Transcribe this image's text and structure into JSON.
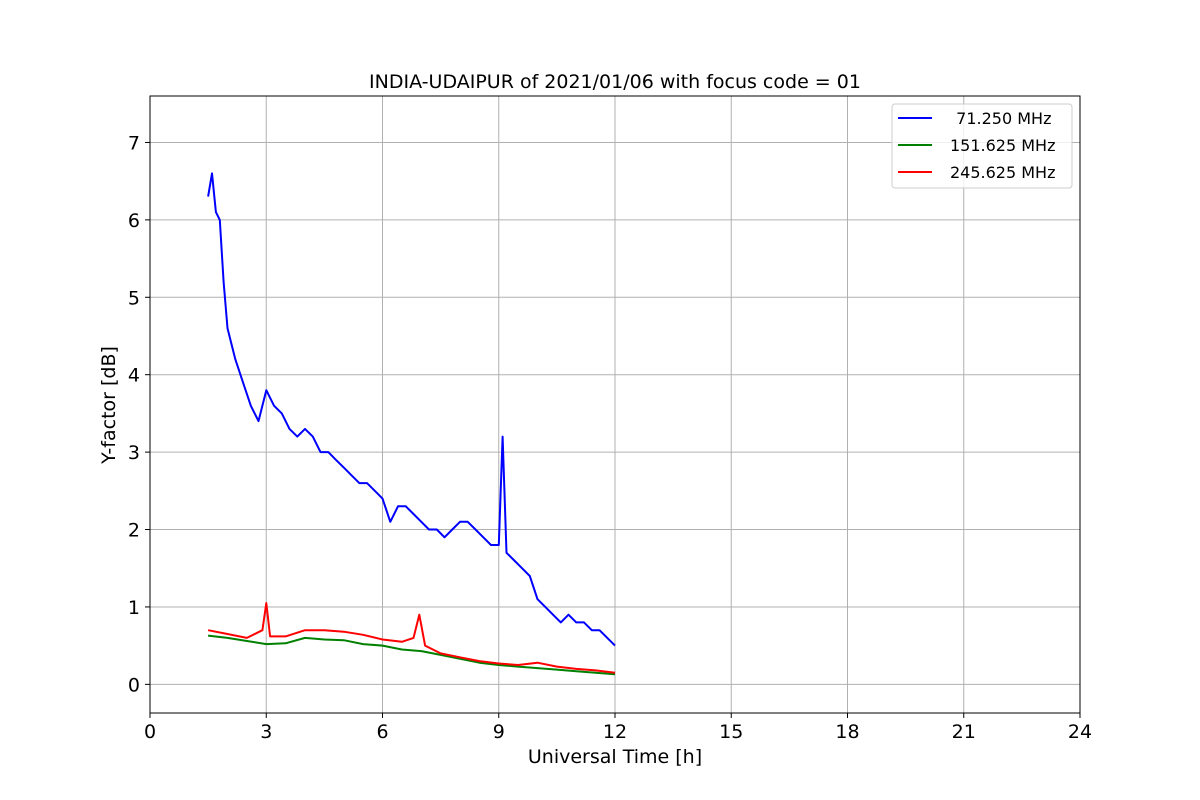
{
  "chart_data": {
    "type": "line",
    "title": "INDIA-UDAIPUR of 2021/01/06 with focus code = 01",
    "xlabel": "Universal Time [h]",
    "ylabel": "Y-factor [dB]",
    "xlim": [
      0,
      24
    ],
    "ylim": [
      -0.37,
      7.6
    ],
    "xticks": [
      0,
      3,
      6,
      9,
      12,
      15,
      18,
      21,
      24
    ],
    "xtick_labels": [
      "0",
      "3",
      "6",
      "9",
      "12",
      "15",
      "18",
      "21",
      "24"
    ],
    "yticks": [
      0,
      1,
      2,
      3,
      4,
      5,
      6,
      7
    ],
    "ytick_labels": [
      "0",
      "1",
      "2",
      "3",
      "4",
      "5",
      "6",
      "7"
    ],
    "grid": true,
    "legend_position": "top-right",
    "series": [
      {
        "name": "  71.250 MHz",
        "color": "#0000ff",
        "x": [
          1.5,
          1.6,
          1.7,
          1.8,
          1.9,
          2.0,
          2.1,
          2.2,
          2.4,
          2.6,
          2.8,
          3.0,
          3.2,
          3.4,
          3.6,
          3.8,
          4.0,
          4.2,
          4.4,
          4.6,
          4.8,
          5.0,
          5.2,
          5.4,
          5.6,
          5.8,
          6.0,
          6.2,
          6.4,
          6.6,
          6.8,
          7.0,
          7.2,
          7.4,
          7.6,
          7.8,
          8.0,
          8.2,
          8.4,
          8.6,
          8.8,
          9.0,
          9.1,
          9.2,
          9.4,
          9.6,
          9.8,
          10.0,
          10.2,
          10.4,
          10.6,
          10.8,
          11.0,
          11.2,
          11.4,
          11.6,
          11.8,
          12.0
        ],
        "y": [
          6.3,
          6.6,
          6.1,
          6.0,
          5.2,
          4.6,
          4.4,
          4.2,
          3.9,
          3.6,
          3.4,
          3.8,
          3.6,
          3.5,
          3.3,
          3.2,
          3.3,
          3.2,
          3.0,
          3.0,
          2.9,
          2.8,
          2.7,
          2.6,
          2.6,
          2.5,
          2.4,
          2.1,
          2.3,
          2.3,
          2.2,
          2.1,
          2.0,
          2.0,
          1.9,
          2.0,
          2.1,
          2.1,
          2.0,
          1.9,
          1.8,
          1.8,
          3.2,
          1.7,
          1.6,
          1.5,
          1.4,
          1.1,
          1.0,
          0.9,
          0.8,
          0.9,
          0.8,
          0.8,
          0.7,
          0.7,
          0.6,
          0.5
        ]
      },
      {
        "name": "151.625 MHz",
        "color": "#008000",
        "x": [
          1.5,
          2.0,
          2.5,
          3.0,
          3.5,
          4.0,
          4.5,
          5.0,
          5.5,
          6.0,
          6.5,
          7.0,
          7.5,
          8.0,
          8.5,
          9.0,
          9.5,
          10.0,
          10.5,
          11.0,
          11.5,
          12.0
        ],
        "y": [
          0.63,
          0.6,
          0.56,
          0.52,
          0.53,
          0.6,
          0.58,
          0.57,
          0.52,
          0.5,
          0.45,
          0.43,
          0.38,
          0.33,
          0.28,
          0.25,
          0.23,
          0.21,
          0.19,
          0.17,
          0.15,
          0.13
        ]
      },
      {
        "name": "245.625 MHz",
        "color": "#ff0000",
        "x": [
          1.5,
          2.0,
          2.5,
          2.9,
          3.0,
          3.1,
          3.5,
          4.0,
          4.5,
          5.0,
          5.5,
          6.0,
          6.5,
          6.8,
          6.95,
          7.1,
          7.5,
          8.0,
          8.5,
          9.0,
          9.5,
          10.0,
          10.5,
          11.0,
          11.5,
          12.0
        ],
        "y": [
          0.7,
          0.65,
          0.6,
          0.7,
          1.05,
          0.62,
          0.62,
          0.7,
          0.7,
          0.68,
          0.64,
          0.58,
          0.55,
          0.6,
          0.9,
          0.5,
          0.4,
          0.35,
          0.3,
          0.27,
          0.25,
          0.28,
          0.23,
          0.2,
          0.18,
          0.15
        ]
      }
    ]
  }
}
